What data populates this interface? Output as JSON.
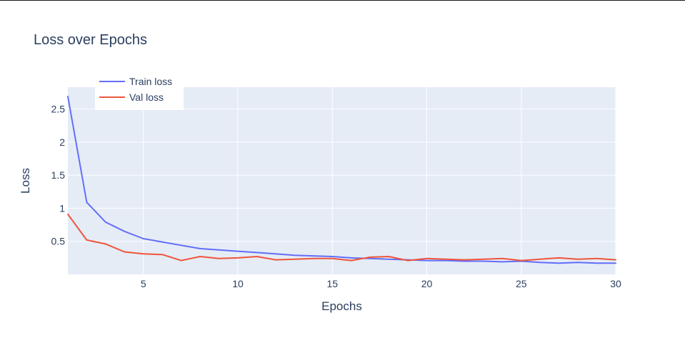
{
  "chart_data": {
    "type": "line",
    "title": "Loss over Epochs",
    "xlabel": "Epochs",
    "ylabel": "Loss",
    "xlim": [
      1,
      30
    ],
    "ylim": [
      0.0,
      2.83
    ],
    "xticks": [
      5,
      10,
      15,
      20,
      25,
      30
    ],
    "xtick_labels": [
      "5",
      "10",
      "15",
      "20",
      "25",
      "30"
    ],
    "yticks": [
      0.5,
      1,
      1.5,
      2,
      2.5
    ],
    "ytick_labels": [
      "0.5",
      "1",
      "1.5",
      "2",
      "2.5"
    ],
    "grid": true,
    "legend_position": "top-left",
    "background_color": "#e5ecf6",
    "x": [
      1,
      2,
      3,
      4,
      5,
      6,
      7,
      8,
      9,
      10,
      11,
      12,
      13,
      14,
      15,
      16,
      17,
      18,
      19,
      20,
      21,
      22,
      23,
      24,
      25,
      26,
      27,
      28,
      29,
      30
    ],
    "series": [
      {
        "name": "Train loss",
        "color": "#636efa",
        "values": [
          2.69,
          1.09,
          0.79,
          0.65,
          0.54,
          0.49,
          0.44,
          0.39,
          0.37,
          0.35,
          0.33,
          0.31,
          0.29,
          0.28,
          0.27,
          0.25,
          0.24,
          0.23,
          0.22,
          0.21,
          0.21,
          0.2,
          0.2,
          0.19,
          0.2,
          0.18,
          0.17,
          0.18,
          0.17,
          0.17
        ]
      },
      {
        "name": "Val loss",
        "color": "#ef553b",
        "values": [
          0.91,
          0.52,
          0.46,
          0.34,
          0.31,
          0.3,
          0.21,
          0.27,
          0.24,
          0.25,
          0.27,
          0.22,
          0.23,
          0.24,
          0.24,
          0.21,
          0.26,
          0.27,
          0.21,
          0.24,
          0.23,
          0.22,
          0.23,
          0.24,
          0.21,
          0.23,
          0.25,
          0.23,
          0.24,
          0.22
        ]
      }
    ]
  }
}
